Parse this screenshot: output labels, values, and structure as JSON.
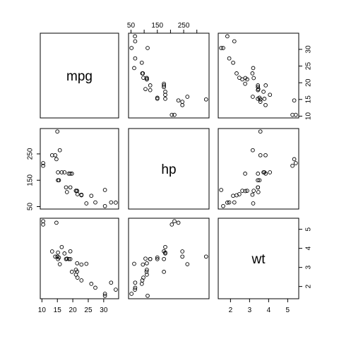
{
  "chart_data": {
    "type": "scatter",
    "subtype": "scatterplot-matrix",
    "title": "",
    "variables": [
      "mpg",
      "hp",
      "wt"
    ],
    "axes": {
      "mpg": {
        "range": [
          10.4,
          33.9
        ],
        "ticks": [
          10,
          15,
          20,
          25,
          30
        ]
      },
      "hp": {
        "range": [
          52,
          335
        ],
        "ticks": [
          50,
          150,
          250
        ],
        "top_ticks": [
          50,
          100,
          150,
          200,
          250,
          300
        ],
        "top_labels": [
          50,
          150,
          250
        ]
      },
      "wt": {
        "range": [
          1.513,
          5.424
        ],
        "ticks": [
          2,
          3,
          4,
          5
        ]
      }
    },
    "tick_placement": {
      "bottom": [
        "mpg",
        "wt"
      ],
      "top": [
        "hp"
      ],
      "left": [
        "hp"
      ],
      "right": [
        "mpg",
        "wt"
      ]
    },
    "data": {
      "mpg": [
        21,
        21,
        22.8,
        21.4,
        18.7,
        18.1,
        14.3,
        24.4,
        22.8,
        19.2,
        17.8,
        16.4,
        17.3,
        15.2,
        10.4,
        10.4,
        14.7,
        32.4,
        30.4,
        33.9,
        21.5,
        15.5,
        15.2,
        13.3,
        19.2,
        27.3,
        26,
        30.4,
        15.8,
        19.7,
        15,
        21.4
      ],
      "hp": [
        110,
        110,
        93,
        110,
        175,
        105,
        245,
        62,
        95,
        123,
        123,
        180,
        180,
        180,
        205,
        215,
        230,
        66,
        52,
        65,
        97,
        150,
        150,
        245,
        175,
        66,
        91,
        113,
        264,
        175,
        335,
        109
      ],
      "wt": [
        2.62,
        2.875,
        2.32,
        3.215,
        3.44,
        3.46,
        3.57,
        3.19,
        3.15,
        3.44,
        3.44,
        4.07,
        3.73,
        3.78,
        5.25,
        5.424,
        5.345,
        2.2,
        1.615,
        1.835,
        2.465,
        3.52,
        3.435,
        3.84,
        3.845,
        1.935,
        2.14,
        1.513,
        3.17,
        2.77,
        3.57,
        2.78
      ]
    }
  }
}
